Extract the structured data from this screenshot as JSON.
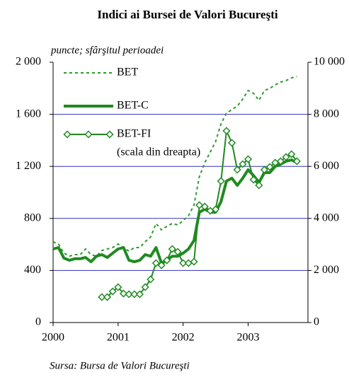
{
  "chart_data": {
    "type": "line",
    "title": "Indici ai Bursei de Valori Bucureşti",
    "ylabel": "puncte; sfârşitul perioadei",
    "source": "Sursa: Bursa de Valori Bucureşti",
    "annotation": "(scala din dreapta)",
    "x": [
      2000,
      2000.083,
      2000.167,
      2000.25,
      2000.333,
      2000.417,
      2000.5,
      2000.583,
      2000.667,
      2000.75,
      2000.833,
      2000.917,
      2001,
      2001.083,
      2001.167,
      2001.25,
      2001.333,
      2001.417,
      2001.5,
      2001.583,
      2001.667,
      2001.75,
      2001.833,
      2001.917,
      2002,
      2002.083,
      2002.167,
      2002.25,
      2002.333,
      2002.417,
      2002.5,
      2002.583,
      2002.667,
      2002.75,
      2002.833,
      2002.917,
      2003,
      2003.083,
      2003.167,
      2003.25,
      2003.333,
      2003.417,
      2003.5,
      2003.583,
      2003.667,
      2003.75
    ],
    "xlim": [
      2000,
      2003.92
    ],
    "xticks": [
      2000,
      2001,
      2002,
      2003
    ],
    "ylim": [
      0,
      2000
    ],
    "yticks": [
      0,
      400,
      800,
      {
        "value": 1200,
        "label": "1 200"
      },
      {
        "value": 1600,
        "label": "1 600"
      },
      {
        "value": 2000,
        "label": "2 000"
      }
    ],
    "y2lim": [
      0,
      10000
    ],
    "y2ticks": [
      0,
      {
        "value": 2000,
        "label": "2 000"
      },
      {
        "value": 4000,
        "label": "4 000"
      },
      {
        "value": 6000,
        "label": "6 000"
      },
      {
        "value": 8000,
        "label": "8 000"
      },
      {
        "value": 10000,
        "label": "10 000"
      }
    ],
    "grid": true,
    "grid_color": "#3030c0",
    "series": [
      {
        "name": "BET",
        "color": "#2e9a2e",
        "line_style": "dashed",
        "values": [
          620,
          603,
          533,
          510,
          522,
          522,
          565,
          522,
          510,
          554,
          565,
          576,
          603,
          576,
          549,
          576,
          576,
          620,
          658,
          761,
          712,
          739,
          761,
          750,
          783,
          821,
          902,
          1120,
          1228,
          1310,
          1391,
          1527,
          1609,
          1636,
          1663,
          1717,
          1783,
          1761,
          1707,
          1783,
          1799,
          1826,
          1848,
          1859,
          1880,
          1891
        ]
      },
      {
        "name": "BET-C",
        "color": "#1f8a1f",
        "line_style": "solid-thick",
        "values": [
          565,
          576,
          495,
          478,
          490,
          490,
          500,
          467,
          510,
          522,
          500,
          533,
          565,
          576,
          478,
          467,
          478,
          522,
          510,
          576,
          457,
          478,
          510,
          510,
          533,
          565,
          630,
          848,
          870,
          848,
          848,
          929,
          1087,
          1109,
          1054,
          1109,
          1174,
          1130,
          1076,
          1152,
          1152,
          1200,
          1217,
          1239,
          1250,
          1228
        ]
      },
      {
        "name": "BET-FI",
        "color": "#1f8a1f",
        "line_style": "solid",
        "marker": "diamond",
        "axis": "y2",
        "values": [
          null,
          null,
          null,
          null,
          null,
          null,
          null,
          null,
          null,
          978,
          978,
          1196,
          1359,
          1114,
          1087,
          1087,
          1087,
          1359,
          1658,
          2283,
          2201,
          2391,
          2826,
          2717,
          2283,
          2283,
          2337,
          4511,
          4457,
          4293,
          4348,
          5435,
          7364,
          6902,
          5870,
          6087,
          6277,
          5489,
          5272,
          5870,
          5978,
          6141,
          6196,
          6359,
          6467,
          6196
        ]
      }
    ]
  }
}
